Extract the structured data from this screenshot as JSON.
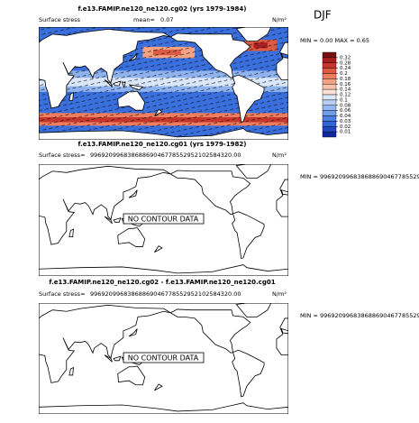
{
  "season": "DJF",
  "panels": [
    {
      "title": "f.e13.FAMIP.ne120_ne120.cg02 (yrs 1979-1984)",
      "variable": "Surface stress",
      "stat_label": "mean=",
      "stat_value": 0.07,
      "units": "N/m²",
      "minmax": "MIN =   0.00 MAX =    0.65"
    },
    {
      "title": "f.e13.FAMIP.ne120_ne120.cg01 (yrs 1979-1982)",
      "variable": "Surface stress=",
      "stat_value": "99692099683868869046778552952102584320.00",
      "units": "N/m²",
      "minmax": "MIN = 99692099683868869046778552952",
      "message": "NO CONTOUR DATA"
    },
    {
      "title": "f.e13.FAMIP.ne120_ne120.cg02 - f.e13.FAMIP.ne120_ne120.cg01",
      "variable": "Surface stress=",
      "stat_value": "99692099683868869046778552952102584320.00",
      "units": "N/m²",
      "minmax": "MIN = 99692099683868869046778552952",
      "message": "NO CONTOUR DATA"
    }
  ],
  "colorbar": {
    "levels": [
      0.32,
      0.28,
      0.24,
      0.2,
      0.18,
      0.16,
      0.14,
      0.12,
      0.1,
      0.08,
      0.06,
      0.04,
      0.03,
      0.02,
      0.01
    ],
    "colors": [
      "#7a0f12",
      "#a81e1e",
      "#c8352a",
      "#de5a42",
      "#ee7e5e",
      "#f5a283",
      "#f9c3ab",
      "#fde3d6",
      "#dbe7fa",
      "#b8cff5",
      "#94b6ef",
      "#6f9be8",
      "#4c7fe0",
      "#3264d5",
      "#1f47bf",
      "#0f289e"
    ]
  }
}
